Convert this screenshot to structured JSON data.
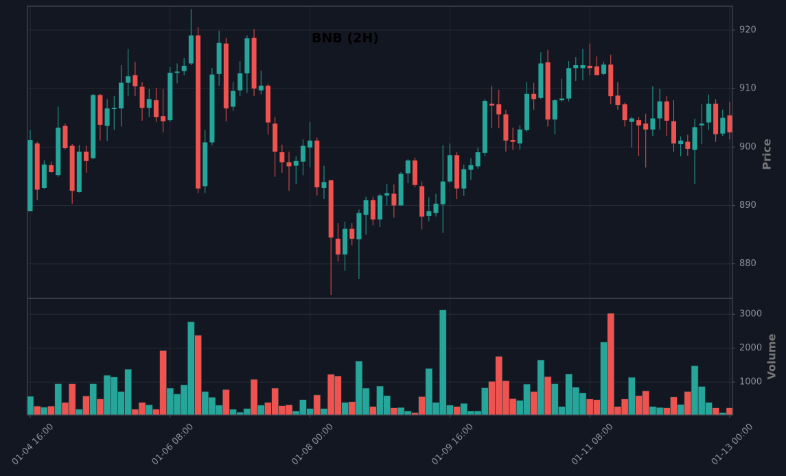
{
  "chart_data": {
    "type": "candlestick",
    "title": "BNB (2H)",
    "categories": [
      "01-04 16:00",
      null,
      null,
      null,
      null,
      null,
      null,
      null,
      null,
      null,
      null,
      null,
      null,
      null,
      null,
      null,
      null,
      null,
      null,
      null,
      "01-06 08:00",
      null,
      null,
      null,
      null,
      null,
      null,
      null,
      null,
      null,
      null,
      null,
      null,
      null,
      null,
      null,
      null,
      null,
      null,
      null,
      "01-08 00:00",
      null,
      null,
      null,
      null,
      null,
      null,
      null,
      null,
      null,
      null,
      null,
      null,
      null,
      null,
      null,
      null,
      null,
      null,
      null,
      "01-09 16:00",
      null,
      null,
      null,
      null,
      null,
      null,
      null,
      null,
      null,
      null,
      null,
      null,
      null,
      null,
      null,
      null,
      null,
      null,
      null,
      "01-11 08:00",
      null,
      null,
      null,
      null,
      null,
      null,
      null,
      null,
      null,
      null,
      null,
      null,
      null,
      null,
      null,
      null,
      null,
      null,
      null,
      "01-13 00:00"
    ],
    "open": [
      889.0,
      900.6,
      893.0,
      896.9,
      895.2,
      903.6,
      900.2,
      892.3,
      899.2,
      898.1,
      908.9,
      903.6,
      906.5,
      906.6,
      911.0,
      912.3,
      910.3,
      906.7,
      908.0,
      905.3,
      904.6,
      912.7,
      913.0,
      914.3,
      919.1,
      893.3,
      900.8,
      912.5,
      917.7,
      906.9,
      909.7,
      912.6,
      918.7,
      909.7,
      910.5,
      904.0,
      899.1,
      897.4,
      896.8,
      897.5,
      899.9,
      901.1,
      893.0,
      894.3,
      884.3,
      881.6,
      886.0,
      884.2,
      888.4,
      890.9,
      887.6,
      891.7,
      892.0,
      890.0,
      895.5,
      897.7,
      893.3,
      888.2,
      888.7,
      890.2,
      894.1,
      898.6,
      892.9,
      896.1,
      896.7,
      899.0,
      907.4,
      907.3,
      905.6,
      901.2,
      900.6,
      902.9,
      909.1,
      908.4,
      914.5,
      904.7,
      908.0,
      908.3,
      913.5,
      913.5,
      913.9,
      913.8,
      912.5,
      914.1,
      908.8,
      907.3,
      904.3,
      904.6,
      904.0,
      903.0,
      904.9,
      907.8,
      904.4,
      900.5,
      900.9,
      899.5,
      903.7,
      904.2,
      907.4,
      902.3,
      905.4
    ],
    "high": [
      902.9,
      900.9,
      897.7,
      897.5,
      906.9,
      904.0,
      900.5,
      900.3,
      900.2,
      909.1,
      909.1,
      908.2,
      908.7,
      914.0,
      916.8,
      914.6,
      911.1,
      909.9,
      910.1,
      909.9,
      913.7,
      914.3,
      915.2,
      923.6,
      920.5,
      902.9,
      913.5,
      919.9,
      918.7,
      911.1,
      914.7,
      919.1,
      920.2,
      913.1,
      910.8,
      905.1,
      900.4,
      899.2,
      898.4,
      901.3,
      904.3,
      901.6,
      896.8,
      894.4,
      887.0,
      887.2,
      887.0,
      889.3,
      891.5,
      891.5,
      892.0,
      893.7,
      893.6,
      895.7,
      897.9,
      898.2,
      894.1,
      891.4,
      892.0,
      900.3,
      900.6,
      899.1,
      897.0,
      898.1,
      899.9,
      908.2,
      910.5,
      909.8,
      906.4,
      903.3,
      903.7,
      911.1,
      911.0,
      916.2,
      916.6,
      908.2,
      911.7,
      914.7,
      915.4,
      916.8,
      917.7,
      915.5,
      914.6,
      915.8,
      911.1,
      907.6,
      905.2,
      905.1,
      905.7,
      910.4,
      909.9,
      908.7,
      908.0,
      901.8,
      902.1,
      904.8,
      907.3,
      909.0,
      908.2,
      906.4,
      907.7
    ],
    "low": [
      889.0,
      890.9,
      892.8,
      895.6,
      894.9,
      899.6,
      890.3,
      892.2,
      895.6,
      897.9,
      901.1,
      901.0,
      902.9,
      903.5,
      908.7,
      908.7,
      904.5,
      905.1,
      904.3,
      902.5,
      904.3,
      910.9,
      912.3,
      914.0,
      892.1,
      892.1,
      900.3,
      910.5,
      904.4,
      906.2,
      908.7,
      909.3,
      908.7,
      909.0,
      902.1,
      894.9,
      895.6,
      892.5,
      893.7,
      895.2,
      896.5,
      891.7,
      891.1,
      874.7,
      880.4,
      878.8,
      883.2,
      877.4,
      885.0,
      886.6,
      886.3,
      890.0,
      887.9,
      890.0,
      893.8,
      893.1,
      885.9,
      887.3,
      888.1,
      885.3,
      893.8,
      891.1,
      891.6,
      894.4,
      896.3,
      898.5,
      903.2,
      903.2,
      899.2,
      899.5,
      899.5,
      902.6,
      906.4,
      908.2,
      903.5,
      902.2,
      907.8,
      907.8,
      911.3,
      911.4,
      912.3,
      912.3,
      912.3,
      907.3,
      906.4,
      903.5,
      899.9,
      898.5,
      896.5,
      901.9,
      903.0,
      901.9,
      899.2,
      898.4,
      898.5,
      893.7,
      900.5,
      902.9,
      900.9,
      901.9,
      901.3
    ],
    "close": [
      901.2,
      892.7,
      897.0,
      895.7,
      903.3,
      899.8,
      892.5,
      899.2,
      897.6,
      908.9,
      903.8,
      906.6,
      906.7,
      911.0,
      912.1,
      910.4,
      906.7,
      908.2,
      905.1,
      904.4,
      912.7,
      912.9,
      913.9,
      919.1,
      892.9,
      900.8,
      912.4,
      917.8,
      906.6,
      909.6,
      912.6,
      918.6,
      910.0,
      910.5,
      904.2,
      899.2,
      897.4,
      896.7,
      897.6,
      900.2,
      901.1,
      893.1,
      894.0,
      884.5,
      881.6,
      886.0,
      884.3,
      888.7,
      890.9,
      887.6,
      891.7,
      892.1,
      890.0,
      895.4,
      897.7,
      893.5,
      888.1,
      889.0,
      890.3,
      894.1,
      898.6,
      892.9,
      896.2,
      896.9,
      899.1,
      907.9,
      907.1,
      905.6,
      901.1,
      900.9,
      903.0,
      909.1,
      908.2,
      914.3,
      904.7,
      908.0,
      908.3,
      913.5,
      914.0,
      914.0,
      913.5,
      912.3,
      914.1,
      908.7,
      907.2,
      904.6,
      904.9,
      903.7,
      903.0,
      904.9,
      907.8,
      904.5,
      900.6,
      901.1,
      899.7,
      903.4,
      904.0,
      907.4,
      902.2,
      905.0,
      902.5
    ],
    "volume": [
      580,
      290,
      260,
      290,
      950,
      400,
      950,
      200,
      590,
      950,
      500,
      1200,
      1150,
      720,
      1380,
      200,
      400,
      330,
      200,
      1930,
      820,
      650,
      920,
      2780,
      2380,
      720,
      550,
      320,
      780,
      200,
      110,
      220,
      1080,
      320,
      400,
      820,
      300,
      330,
      150,
      480,
      220,
      620,
      220,
      1230,
      1180,
      400,
      420,
      1620,
      820,
      280,
      880,
      600,
      240,
      250,
      150,
      100,
      570,
      1400,
      400,
      3130,
      320,
      280,
      370,
      150,
      150,
      830,
      1020,
      1760,
      1040,
      510,
      460,
      940,
      720,
      1650,
      1160,
      950,
      280,
      1240,
      850,
      680,
      500,
      480,
      2180,
      3030,
      280,
      500,
      1140,
      600,
      740,
      280,
      250,
      240,
      560,
      340,
      720,
      1480,
      870,
      400,
      240,
      100,
      240
    ],
    "ylabel": "Price",
    "volume_label": "Volume",
    "ylim": [
      874.1,
      924.1
    ],
    "yticks": [
      880,
      890,
      900,
      910,
      920
    ],
    "volume_ylim": [
      30,
      3470
    ],
    "volume_yticks": [
      1000,
      2000,
      3000
    ],
    "up_color": "#26a69a",
    "down_color": "#ef5350",
    "grid": true
  }
}
